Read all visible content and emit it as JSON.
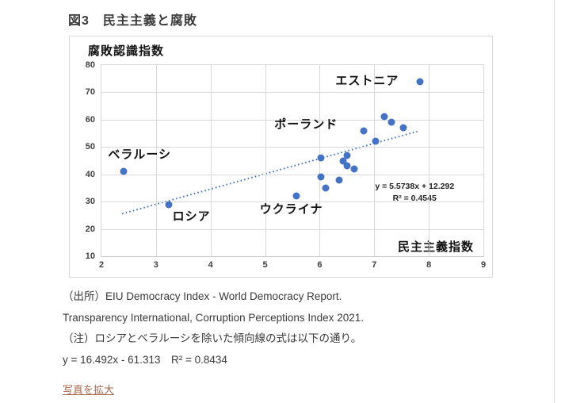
{
  "page": {
    "title": "図3　民主主義と腐敗",
    "caption": {
      "source_line1": "（出所）EIU Democracy Index - World Democracy Report.",
      "source_line2": "Transparency International, Corruption Perceptions Index 2021.",
      "note_line": "（注）ロシアとベラルーシを除いた傾向線の式は以下の通り。",
      "note_equation": "y = 16.492x - 61.313　R² = 0.8434"
    },
    "zoom_link_label": "写真を拡大"
  },
  "chart_data": {
    "type": "scatter",
    "y_axis_title": "腐敗認識指数",
    "x_axis_title": "民主主義指数",
    "xlim": [
      2,
      9
    ],
    "ylim": [
      10,
      80
    ],
    "x_ticks": [
      2,
      3,
      4,
      5,
      6,
      7,
      8,
      9
    ],
    "y_ticks": [
      10,
      20,
      30,
      40,
      50,
      60,
      70,
      80
    ],
    "grid": true,
    "points": [
      {
        "x": 2.41,
        "y": 41,
        "country": "ベラルーシ"
      },
      {
        "x": 3.24,
        "y": 29,
        "country": "ロシア"
      },
      {
        "x": 5.57,
        "y": 32,
        "country": "ウクライナ"
      },
      {
        "x": 6.02,
        "y": 46
      },
      {
        "x": 6.03,
        "y": 39
      },
      {
        "x": 6.11,
        "y": 35
      },
      {
        "x": 6.36,
        "y": 38
      },
      {
        "x": 6.43,
        "y": 45
      },
      {
        "x": 6.5,
        "y": 47
      },
      {
        "x": 6.5,
        "y": 43
      },
      {
        "x": 6.64,
        "y": 42
      },
      {
        "x": 6.8,
        "y": 56,
        "country": "ポーランド"
      },
      {
        "x": 7.03,
        "y": 52
      },
      {
        "x": 7.18,
        "y": 61
      },
      {
        "x": 7.31,
        "y": 59
      },
      {
        "x": 7.54,
        "y": 57
      },
      {
        "x": 7.84,
        "y": 74,
        "country": "エストニア"
      }
    ],
    "annotations": [
      {
        "name": "label-belarus",
        "text": "ベラルーシ",
        "x": 2.7,
        "y": 47.4
      },
      {
        "name": "label-russia",
        "text": "ロシア",
        "x": 3.65,
        "y": 24.7
      },
      {
        "name": "label-ukraine",
        "text": "ウクライナ",
        "x": 5.48,
        "y": 27.4
      },
      {
        "name": "label-poland",
        "text": "ポーランド",
        "x": 5.75,
        "y": 58.4
      },
      {
        "name": "label-estonia",
        "text": "エストニア",
        "x": 6.87,
        "y": 74.4
      }
    ],
    "trendline": {
      "style": "dotted",
      "slope": 5.5738,
      "intercept": 12.292,
      "x_start": 2.38,
      "x_end": 7.79,
      "equation_label": "y = 5.5738x + 12.292",
      "r2_label": "R² = 0.4545"
    },
    "colors": {
      "point": "#4472C4",
      "trendline": "#4472C4",
      "gridline": "#d9d9d9",
      "link": "#a5694f"
    }
  }
}
